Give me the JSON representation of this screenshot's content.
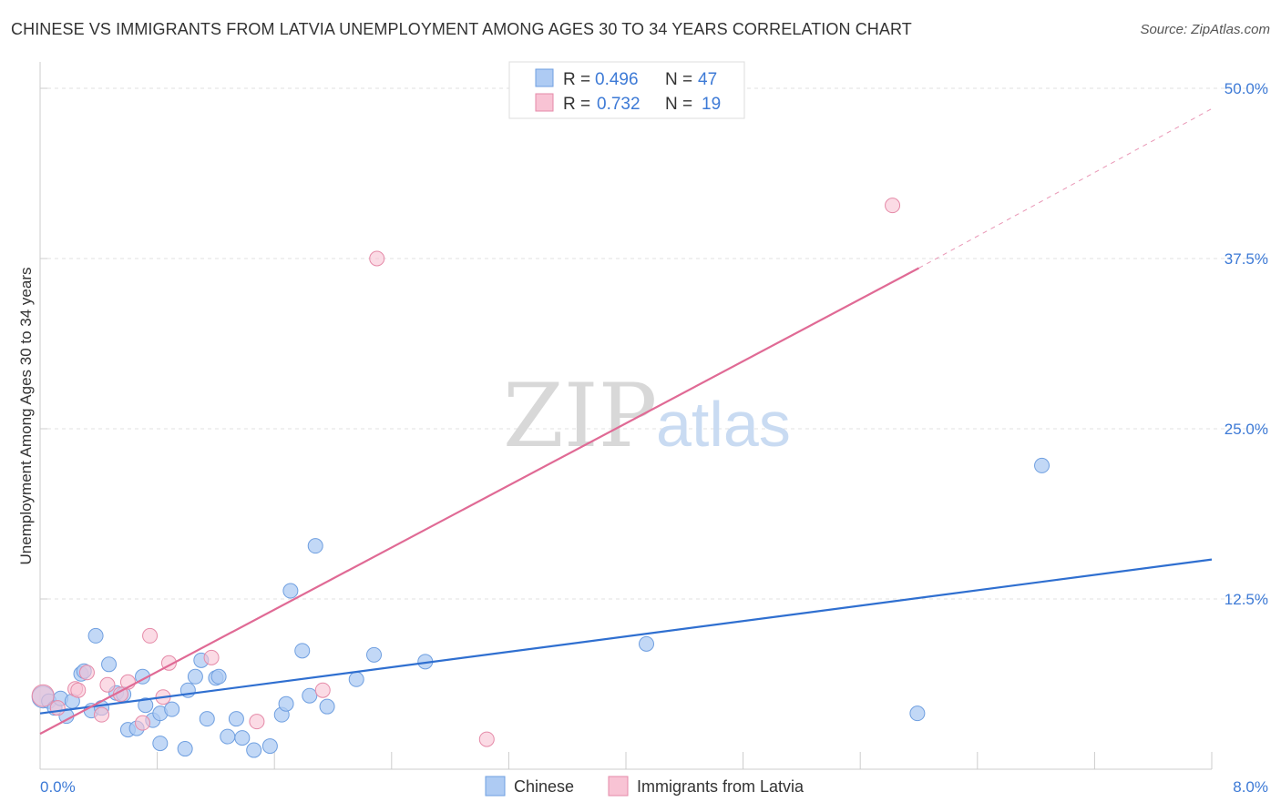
{
  "header": {
    "title": "CHINESE VS IMMIGRANTS FROM LATVIA UNEMPLOYMENT AMONG AGES 30 TO 34 YEARS CORRELATION CHART",
    "source": "Source: ZipAtlas.com"
  },
  "watermark": {
    "zip": "ZIP",
    "atlas": "atlas"
  },
  "legend_stats": [
    {
      "r_label": "R =",
      "r_value": "0.496",
      "n_label": "N =",
      "n_value": "47",
      "color": "#aecbf3",
      "stroke": "#6f9fe0"
    },
    {
      "r_label": "R =",
      "r_value": "0.732",
      "n_label": "N =",
      "n_value": "19",
      "color": "#f8c3d4",
      "stroke": "#e58aa8"
    }
  ],
  "chart_data": {
    "type": "scatter",
    "title": "CHINESE VS IMMIGRANTS FROM LATVIA UNEMPLOYMENT AMONG AGES 30 TO 34 YEARS CORRELATION CHART",
    "xlabel": "",
    "ylabel": "Unemployment Among Ages 30 to 34 years",
    "xlim": [
      0,
      8
    ],
    "ylim": [
      0,
      50
    ],
    "x_tick_labels": [
      "0.0%",
      "8.0%"
    ],
    "y_ticks": [
      12.5,
      25.0,
      37.5,
      50.0
    ],
    "y_tick_labels": [
      "12.5%",
      "25.0%",
      "37.5%",
      "50.0%"
    ],
    "grid": true,
    "legend_position": "bottom",
    "series": [
      {
        "name": "Chinese",
        "color": "#aecbf3",
        "stroke": "#6f9fe0",
        "trend_color": "#2f6fd0",
        "trend": {
          "x0": 0.0,
          "y0": 4.1,
          "x1": 8.0,
          "y1": 15.4
        },
        "points": [
          [
            0.02,
            5.3
          ],
          [
            0.06,
            5.0
          ],
          [
            0.1,
            4.5
          ],
          [
            0.14,
            5.2
          ],
          [
            0.18,
            3.9
          ],
          [
            0.22,
            5.0
          ],
          [
            0.28,
            7.0
          ],
          [
            0.3,
            7.2
          ],
          [
            0.35,
            4.3
          ],
          [
            0.38,
            9.8
          ],
          [
            0.42,
            4.5
          ],
          [
            0.47,
            7.7
          ],
          [
            0.52,
            5.6
          ],
          [
            0.57,
            5.5
          ],
          [
            0.6,
            2.9
          ],
          [
            0.66,
            3.0
          ],
          [
            0.7,
            6.8
          ],
          [
            0.72,
            4.7
          ],
          [
            0.77,
            3.6
          ],
          [
            0.82,
            4.1
          ],
          [
            0.82,
            1.9
          ],
          [
            0.9,
            4.4
          ],
          [
            0.99,
            1.5
          ],
          [
            1.01,
            5.8
          ],
          [
            1.06,
            6.8
          ],
          [
            1.1,
            8.0
          ],
          [
            1.14,
            3.7
          ],
          [
            1.2,
            6.7
          ],
          [
            1.22,
            6.8
          ],
          [
            1.28,
            2.4
          ],
          [
            1.34,
            3.7
          ],
          [
            1.38,
            2.3
          ],
          [
            1.46,
            1.4
          ],
          [
            1.57,
            1.7
          ],
          [
            1.65,
            4.0
          ],
          [
            1.68,
            4.8
          ],
          [
            1.71,
            13.1
          ],
          [
            1.79,
            8.7
          ],
          [
            1.84,
            5.4
          ],
          [
            1.88,
            16.4
          ],
          [
            1.96,
            4.6
          ],
          [
            2.16,
            6.6
          ],
          [
            2.28,
            8.4
          ],
          [
            2.63,
            7.9
          ],
          [
            4.14,
            9.2
          ],
          [
            5.99,
            4.1
          ],
          [
            6.84,
            22.3
          ]
        ]
      },
      {
        "name": "Immigrants from Latvia",
        "color": "#f8c3d4",
        "stroke": "#e58aa8",
        "trend_color": "#e06a95",
        "trend": {
          "x0": 0.0,
          "y0": 2.6,
          "x1": 6.0,
          "y1": 36.8,
          "x_ext": 8.0,
          "y_ext": 48.5
        },
        "points": [
          [
            0.02,
            5.4
          ],
          [
            0.12,
            4.5
          ],
          [
            0.24,
            5.9
          ],
          [
            0.32,
            7.1
          ],
          [
            0.42,
            4.0
          ],
          [
            0.46,
            6.2
          ],
          [
            0.55,
            5.5
          ],
          [
            0.6,
            6.4
          ],
          [
            0.7,
            3.4
          ],
          [
            0.75,
            9.8
          ],
          [
            0.84,
            5.3
          ],
          [
            0.88,
            7.8
          ],
          [
            1.17,
            8.2
          ],
          [
            1.48,
            3.5
          ],
          [
            1.93,
            5.8
          ],
          [
            2.3,
            37.5
          ],
          [
            3.05,
            2.2
          ],
          [
            5.82,
            41.4
          ],
          [
            0.26,
            5.8
          ]
        ]
      }
    ]
  }
}
